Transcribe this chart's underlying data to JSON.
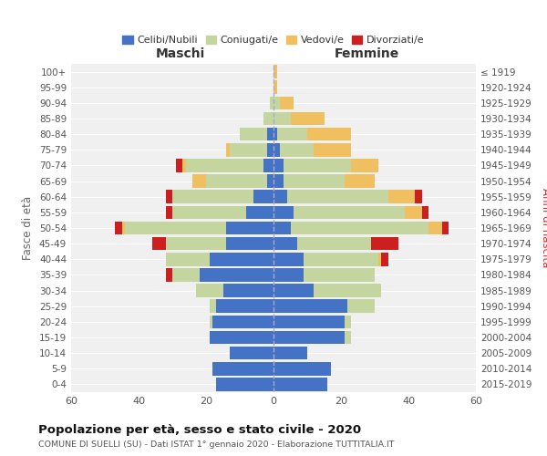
{
  "age_groups": [
    "0-4",
    "5-9",
    "10-14",
    "15-19",
    "20-24",
    "25-29",
    "30-34",
    "35-39",
    "40-44",
    "45-49",
    "50-54",
    "55-59",
    "60-64",
    "65-69",
    "70-74",
    "75-79",
    "80-84",
    "85-89",
    "90-94",
    "95-99",
    "100+"
  ],
  "birth_years": [
    "2015-2019",
    "2010-2014",
    "2005-2009",
    "2000-2004",
    "1995-1999",
    "1990-1994",
    "1985-1989",
    "1980-1984",
    "1975-1979",
    "1970-1974",
    "1965-1969",
    "1960-1964",
    "1955-1959",
    "1950-1954",
    "1945-1949",
    "1940-1944",
    "1935-1939",
    "1930-1934",
    "1925-1929",
    "1920-1924",
    "≤ 1919"
  ],
  "colors": {
    "celibi": "#4472c4",
    "coniugati": "#c5d5a0",
    "vedovi": "#f0c060",
    "divorziati": "#cc2020"
  },
  "males": {
    "celibi": [
      17,
      18,
      13,
      19,
      18,
      17,
      15,
      22,
      19,
      14,
      14,
      8,
      6,
      2,
      3,
      2,
      2,
      0,
      0,
      0,
      0
    ],
    "coniugati": [
      0,
      0,
      0,
      0,
      1,
      2,
      8,
      8,
      13,
      18,
      30,
      22,
      24,
      18,
      23,
      11,
      8,
      3,
      1,
      0,
      0
    ],
    "vedovi": [
      0,
      0,
      0,
      0,
      0,
      0,
      0,
      0,
      0,
      0,
      1,
      0,
      0,
      4,
      1,
      1,
      0,
      0,
      0,
      0,
      0
    ],
    "divorziati": [
      0,
      0,
      0,
      0,
      0,
      0,
      0,
      2,
      0,
      4,
      2,
      2,
      2,
      0,
      2,
      0,
      0,
      0,
      0,
      0,
      0
    ]
  },
  "females": {
    "nubili": [
      16,
      17,
      10,
      21,
      21,
      22,
      12,
      9,
      9,
      7,
      5,
      6,
      4,
      3,
      3,
      2,
      1,
      0,
      0,
      0,
      0
    ],
    "coniugate": [
      0,
      0,
      0,
      2,
      2,
      8,
      20,
      21,
      22,
      22,
      41,
      33,
      30,
      18,
      20,
      10,
      9,
      5,
      2,
      0,
      0
    ],
    "vedove": [
      0,
      0,
      0,
      0,
      0,
      0,
      0,
      0,
      1,
      0,
      4,
      5,
      8,
      9,
      8,
      11,
      13,
      10,
      4,
      1,
      1
    ],
    "divorziate": [
      0,
      0,
      0,
      0,
      0,
      0,
      0,
      0,
      2,
      8,
      2,
      2,
      2,
      0,
      0,
      0,
      0,
      0,
      0,
      0,
      0
    ]
  },
  "title": "Popolazione per età, sesso e stato civile - 2020",
  "subtitle": "COMUNE DI SUELLI (SU) - Dati ISTAT 1° gennaio 2020 - Elaborazione TUTTITALIA.IT",
  "xlabel_left": "Maschi",
  "xlabel_right": "Femmine",
  "ylabel_left": "Fasce di età",
  "ylabel_right": "Anni di nascita",
  "xlim": 60,
  "legend_labels": [
    "Celibi/Nubili",
    "Coniugati/e",
    "Vedovi/e",
    "Divorziati/e"
  ],
  "background_color": "#ffffff",
  "plot_bg_color": "#f0f0f0",
  "grid_color": "#ffffff"
}
